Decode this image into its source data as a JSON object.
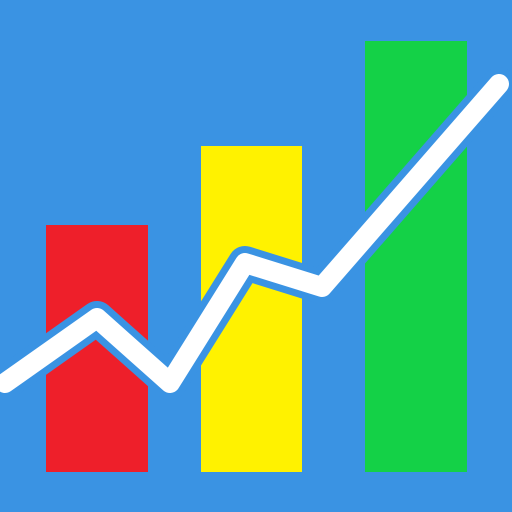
{
  "icon": {
    "name": "growth-chart-icon",
    "background_color": "#3a93e3",
    "bar_colors": [
      "#ee1f2a",
      "#fff200",
      "#14d147"
    ],
    "trend_line_color": "#ffffff"
  }
}
